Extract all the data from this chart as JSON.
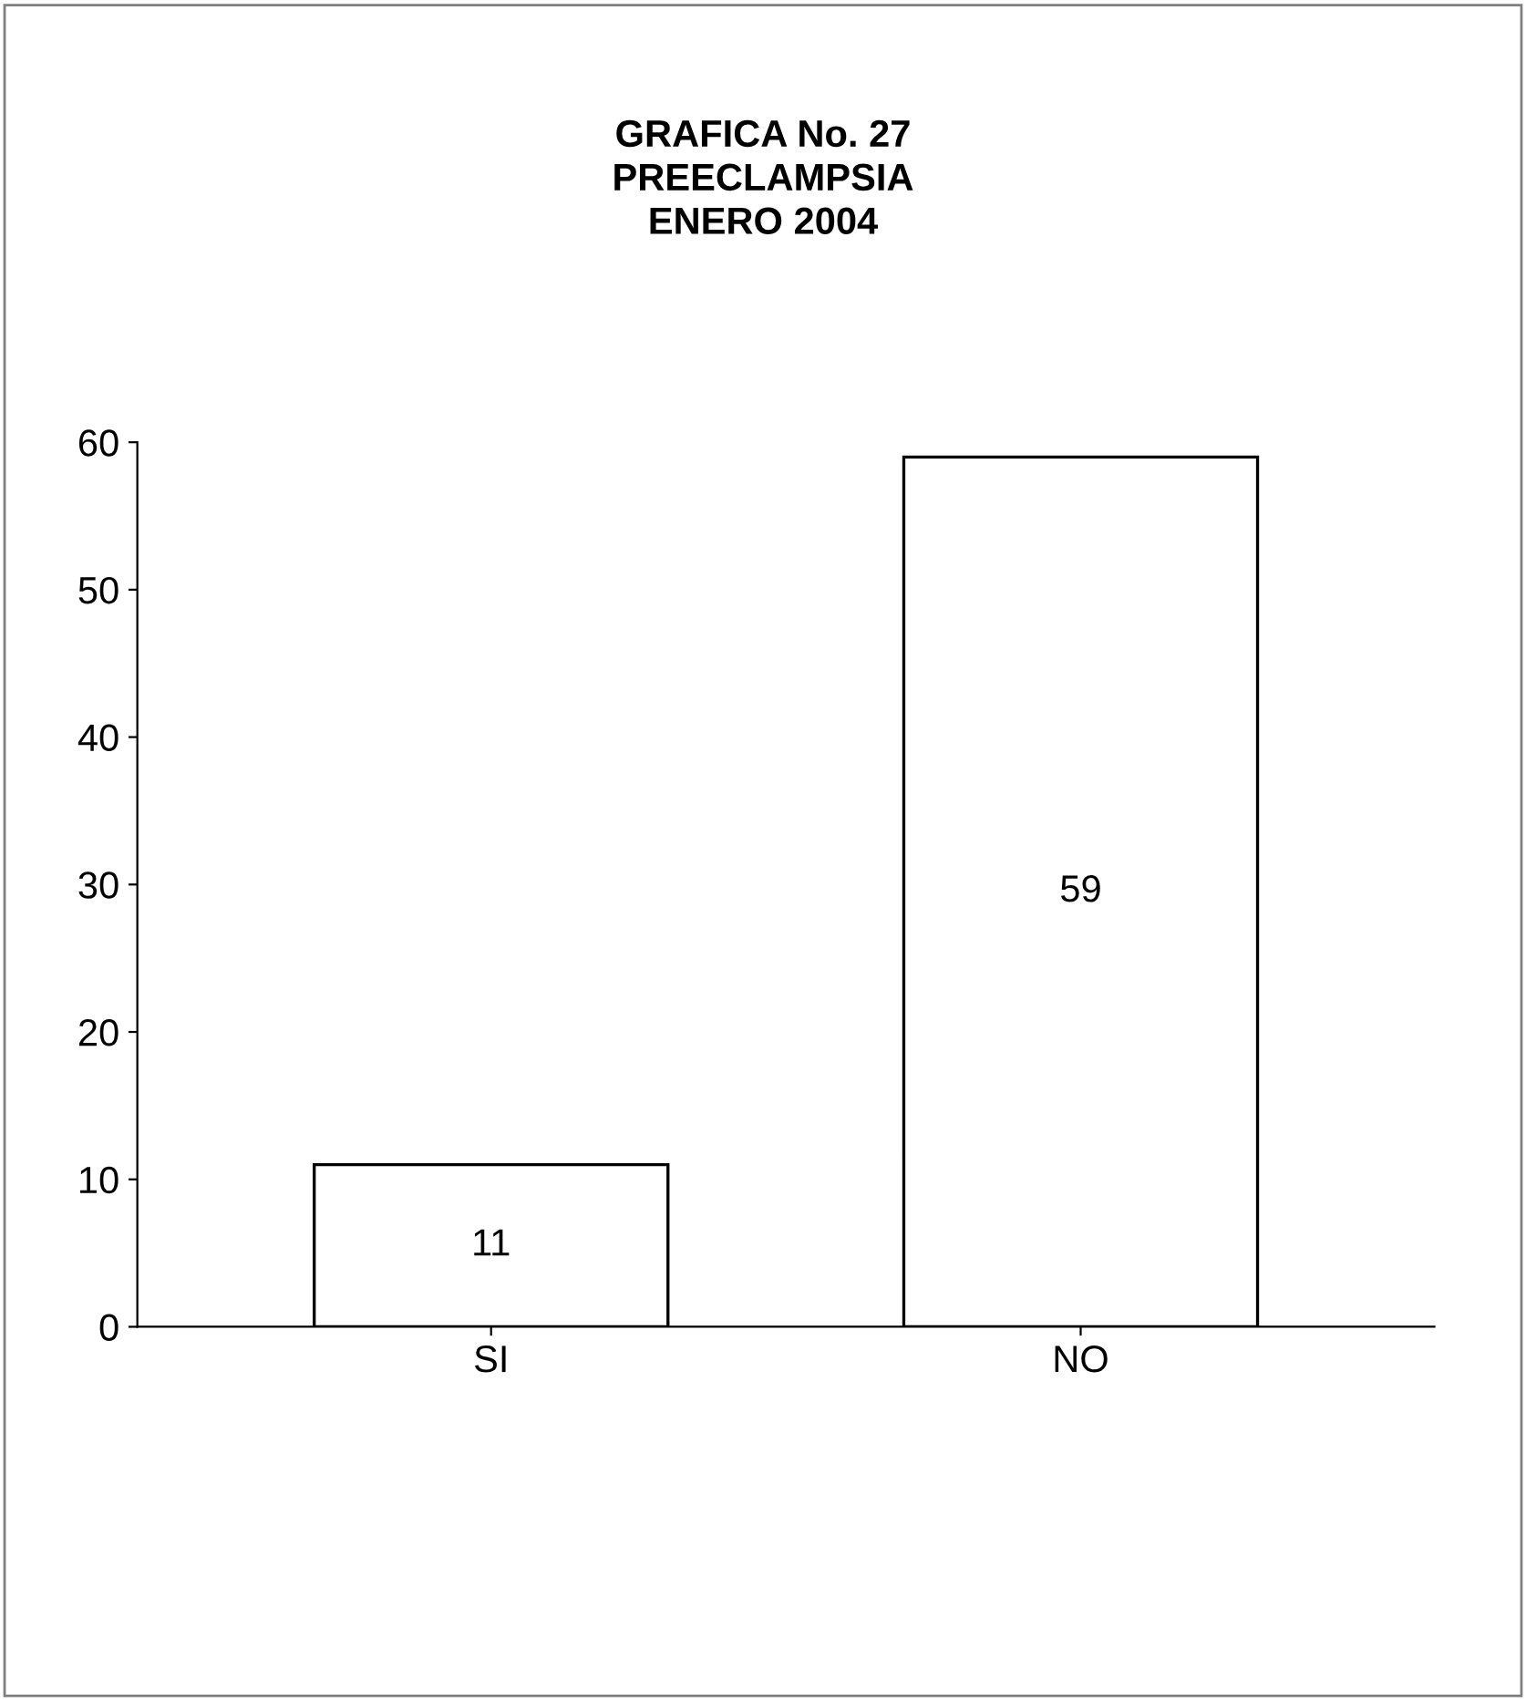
{
  "chart_data": {
    "type": "bar",
    "title": "GRAFICA No. 27\nPREECLAMPSIA\nENERO 2004",
    "categories": [
      "SI",
      "NO"
    ],
    "values": [
      11,
      59
    ],
    "color": "#ffffff",
    "ylim": [
      0,
      60
    ],
    "yticks": [
      0,
      10,
      20,
      30,
      40,
      50,
      60
    ],
    "grid": false,
    "data_labels": true
  }
}
